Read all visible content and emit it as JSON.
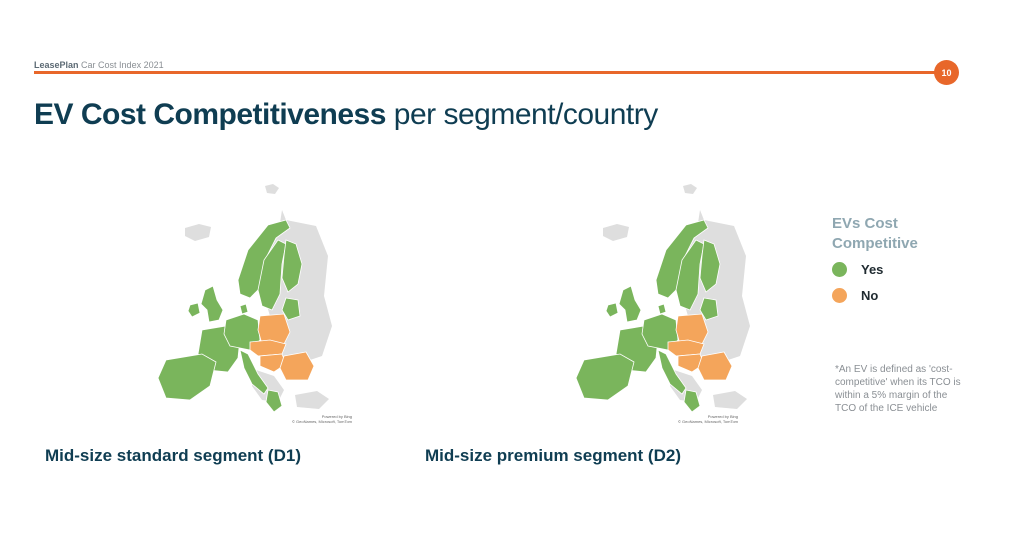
{
  "header": {
    "brand": "LeasePlan",
    "report": "Car Cost Index 2021",
    "page_number": "10"
  },
  "title": {
    "bold": "EV Cost Competitiveness",
    "rest": "per segment/country"
  },
  "maps": [
    {
      "caption": "Mid-size standard segment (D1)",
      "attribution": [
        "Powered by Bing",
        "© GeoNames, Microsoft, TomTom"
      ],
      "orange_countries": [
        "Poland",
        "Czech Republic",
        "Slovakia",
        "Hungary",
        "Romania"
      ]
    },
    {
      "caption": "Mid-size premium segment (D2)",
      "attribution": [
        "Powered by Bing",
        "© GeoNames, Microsoft, TomTom"
      ],
      "orange_countries": [
        "Poland",
        "Czech Republic",
        "Slovakia",
        "Hungary",
        "Romania"
      ]
    }
  ],
  "legend": {
    "title": "EVs Cost Competitive",
    "items": [
      {
        "label": "Yes",
        "color": "#7ab55c"
      },
      {
        "label": "No",
        "color": "#f4a55b"
      }
    ]
  },
  "footnote": "*An EV is defined as 'cost-competitive' when its TCO is within a 5% margin of the TCO of the ICE vehicle",
  "colors": {
    "accent": "#e8672a",
    "title": "#0f3d52",
    "yes": "#7ab55c",
    "no": "#f4a55b",
    "other": "#dedede"
  }
}
